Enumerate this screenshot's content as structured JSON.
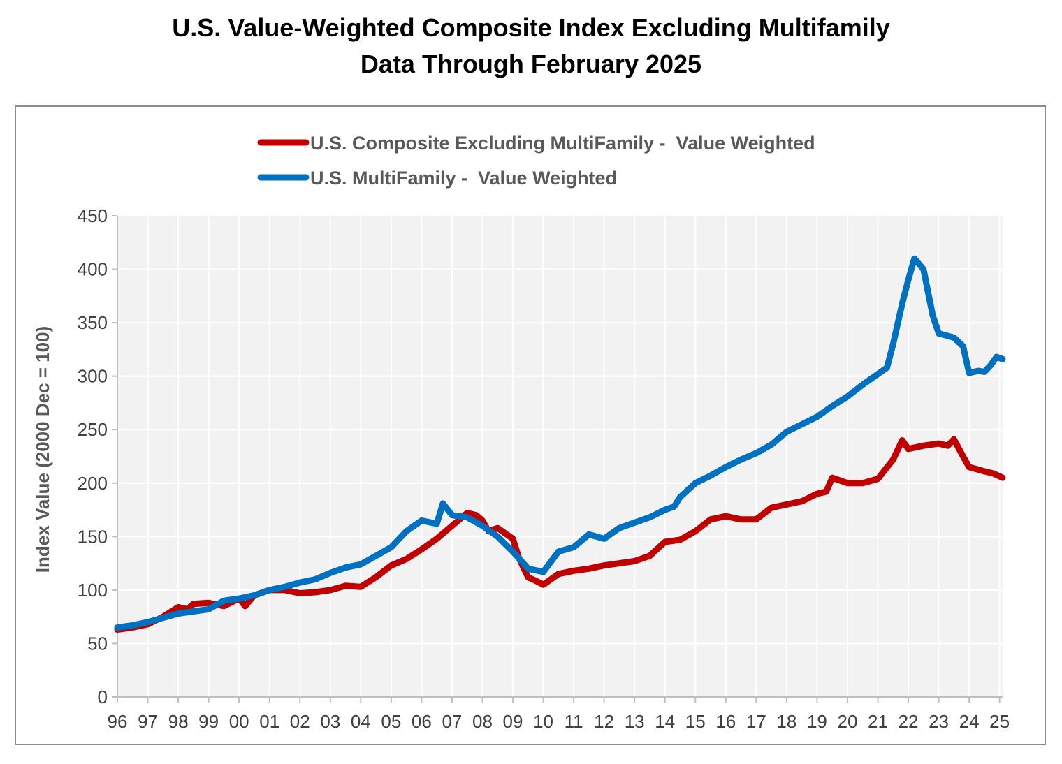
{
  "chart_data": {
    "type": "line",
    "title": "U.S. Value-Weighted Composite Index Excluding Multifamily",
    "subtitle": "Data Through February 2025",
    "xlabel": "",
    "ylabel": "Index Value (2000 Dec = 100)",
    "ylim": [
      0,
      450
    ],
    "yticks": [
      0,
      50,
      100,
      150,
      200,
      250,
      300,
      350,
      400,
      450
    ],
    "xlim": [
      1996,
      2025.1
    ],
    "categories": [
      "96",
      "97",
      "98",
      "99",
      "00",
      "01",
      "02",
      "03",
      "04",
      "05",
      "06",
      "07",
      "08",
      "09",
      "10",
      "11",
      "12",
      "13",
      "14",
      "15",
      "16",
      "17",
      "18",
      "19",
      "20",
      "21",
      "22",
      "23",
      "24",
      "25"
    ],
    "grid": true,
    "legend_position": "top",
    "series": [
      {
        "name": "U.S. Composite Excluding MultiFamily -  Value Weighted",
        "color": "#C00000",
        "x": [
          1996.0,
          1996.5,
          1997.0,
          1997.5,
          1998.0,
          1998.3,
          1998.5,
          1999.0,
          1999.5,
          2000.0,
          2000.2,
          2000.5,
          2001.0,
          2001.5,
          2002.0,
          2002.5,
          2003.0,
          2003.5,
          2004.0,
          2004.5,
          2005.0,
          2005.5,
          2006.0,
          2006.5,
          2007.0,
          2007.5,
          2007.8,
          2008.0,
          2008.2,
          2008.5,
          2009.0,
          2009.2,
          2009.5,
          2009.8,
          2010.0,
          2010.5,
          2011.0,
          2011.5,
          2012.0,
          2012.5,
          2013.0,
          2013.5,
          2014.0,
          2014.5,
          2015.0,
          2015.5,
          2016.0,
          2016.5,
          2017.0,
          2017.5,
          2018.0,
          2018.5,
          2019.0,
          2019.3,
          2019.5,
          2020.0,
          2020.5,
          2021.0,
          2021.5,
          2021.8,
          2022.0,
          2022.5,
          2023.0,
          2023.3,
          2023.5,
          2023.8,
          2024.0,
          2024.5,
          2024.8,
          2025.1
        ],
        "values": [
          63,
          65,
          68,
          75,
          84,
          82,
          87,
          88,
          85,
          92,
          85,
          95,
          100,
          100,
          97,
          98,
          100,
          104,
          103,
          112,
          123,
          129,
          138,
          148,
          160,
          172,
          170,
          165,
          155,
          158,
          148,
          130,
          112,
          108,
          105,
          115,
          118,
          120,
          123,
          125,
          127,
          132,
          145,
          147,
          155,
          166,
          169,
          166,
          166,
          177,
          180,
          183,
          190,
          192,
          205,
          200,
          200,
          204,
          222,
          240,
          232,
          235,
          237,
          235,
          241,
          225,
          215,
          211,
          209,
          205
        ]
      },
      {
        "name": "U.S. MultiFamily -  Value Weighted",
        "color": "#0070C0",
        "x": [
          1996.0,
          1996.5,
          1997.0,
          1997.5,
          1998.0,
          1998.5,
          1999.0,
          1999.5,
          2000.0,
          2000.5,
          2001.0,
          2001.5,
          2002.0,
          2002.5,
          2003.0,
          2003.5,
          2004.0,
          2004.5,
          2005.0,
          2005.5,
          2006.0,
          2006.5,
          2006.7,
          2007.0,
          2007.5,
          2008.0,
          2008.5,
          2009.0,
          2009.5,
          2010.0,
          2010.5,
          2011.0,
          2011.5,
          2012.0,
          2012.5,
          2013.0,
          2013.5,
          2014.0,
          2014.3,
          2014.5,
          2015.0,
          2015.5,
          2016.0,
          2016.5,
          2017.0,
          2017.5,
          2018.0,
          2018.5,
          2019.0,
          2019.5,
          2020.0,
          2020.5,
          2021.0,
          2021.3,
          2021.5,
          2021.8,
          2022.0,
          2022.2,
          2022.5,
          2022.8,
          2023.0,
          2023.5,
          2023.8,
          2024.0,
          2024.3,
          2024.5,
          2024.7,
          2024.9,
          2025.1
        ],
        "values": [
          65,
          67,
          70,
          74,
          78,
          80,
          82,
          90,
          92,
          95,
          100,
          103,
          107,
          110,
          116,
          121,
          124,
          132,
          140,
          155,
          165,
          162,
          181,
          170,
          168,
          160,
          150,
          136,
          120,
          117,
          136,
          140,
          152,
          148,
          158,
          163,
          168,
          175,
          178,
          187,
          200,
          207,
          215,
          222,
          228,
          236,
          248,
          255,
          262,
          272,
          281,
          292,
          302,
          308,
          330,
          368,
          390,
          410,
          400,
          357,
          340,
          336,
          328,
          303,
          305,
          304,
          310,
          318,
          316
        ]
      }
    ]
  }
}
